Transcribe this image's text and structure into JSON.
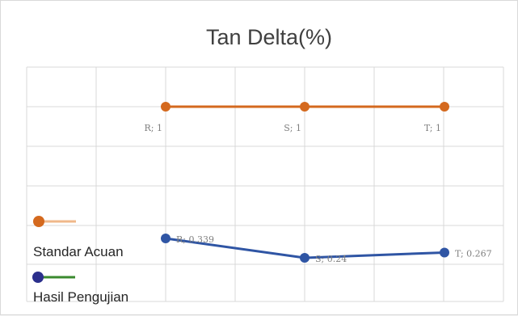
{
  "chart_data": {
    "type": "line",
    "title": "Tan Delta(%)",
    "categories": [
      "R",
      "S",
      "T"
    ],
    "series": [
      {
        "name": "Standar Acuan",
        "color": "#d4691e",
        "legend_line_color": "#f0b88a",
        "values": [
          1,
          1,
          1
        ],
        "labels": [
          "R; 1",
          "S; 1",
          "T; 1"
        ]
      },
      {
        "name": "Hasil Pengujian",
        "color": "#2f55a4",
        "legend_marker_color": "#2b2f8c",
        "legend_line_color": "#3a8a2e",
        "values": [
          0.339,
          0.24,
          0.267
        ],
        "labels": [
          "R; 0.339",
          "S; 0.24",
          "T; 0.267"
        ]
      }
    ],
    "grid": true,
    "legend_placement": "left-bottom"
  }
}
